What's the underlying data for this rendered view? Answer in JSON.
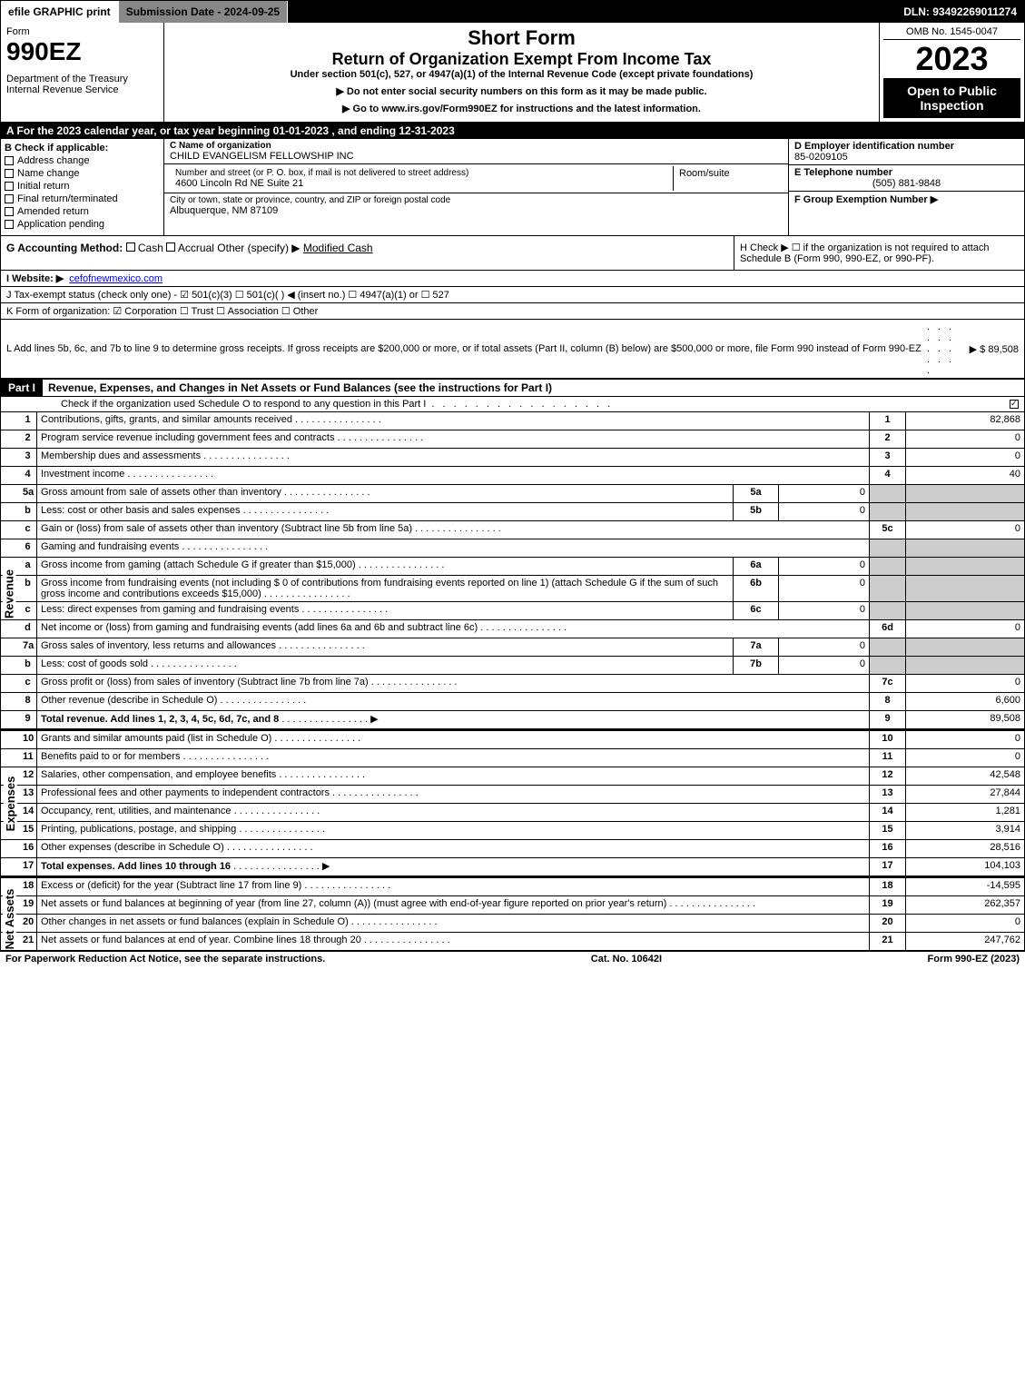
{
  "topbar": {
    "efile": "efile GRAPHIC print",
    "submission": "Submission Date - 2024-09-25",
    "dln": "DLN: 93492269011274"
  },
  "header": {
    "form_label": "Form",
    "form_number": "990EZ",
    "dept1": "Department of the Treasury",
    "dept2": "Internal Revenue Service",
    "short_form": "Short Form",
    "title": "Return of Organization Exempt From Income Tax",
    "under": "Under section 501(c), 527, or 4947(a)(1) of the Internal Revenue Code (except private foundations)",
    "warn": "▶ Do not enter social security numbers on this form as it may be made public.",
    "goto": "▶ Go to www.irs.gov/Form990EZ for instructions and the latest information.",
    "omb": "OMB No. 1545-0047",
    "year": "2023",
    "open": "Open to Public Inspection"
  },
  "rowA": "A  For the 2023 calendar year, or tax year beginning 01-01-2023 , and ending 12-31-2023",
  "sectionB": {
    "label": "B  Check if applicable:",
    "items": [
      "Address change",
      "Name change",
      "Initial return",
      "Final return/terminated",
      "Amended return",
      "Application pending"
    ]
  },
  "sectionC": {
    "name_label": "C Name of organization",
    "name": "CHILD EVANGELISM FELLOWSHIP INC",
    "street_label": "Number and street (or P. O. box, if mail is not delivered to street address)",
    "street": "4600 Lincoln Rd NE Suite 21",
    "room_label": "Room/suite",
    "city_label": "City or town, state or province, country, and ZIP or foreign postal code",
    "city": "Albuquerque, NM  87109"
  },
  "sectionD": {
    "ein_label": "D Employer identification number",
    "ein": "85-0209105",
    "phone_label": "E Telephone number",
    "phone": "(505) 881-9848",
    "group_label": "F Group Exemption Number  ▶"
  },
  "rowG": {
    "label": "G Accounting Method:",
    "cash": "Cash",
    "accrual": "Accrual",
    "other": "Other (specify) ▶",
    "method": "Modified Cash"
  },
  "rowH": {
    "text": "H  Check ▶ ☐ if the organization is not required to attach Schedule B (Form 990, 990-EZ, or 990-PF)."
  },
  "rowI": {
    "label": "I Website: ▶",
    "site": "cefofnewmexico.com"
  },
  "rowJ": "J Tax-exempt status (check only one) - ☑ 501(c)(3) ☐ 501(c)(  ) ◀ (insert no.) ☐ 4947(a)(1) or ☐ 527",
  "rowK": "K Form of organization:  ☑ Corporation  ☐ Trust  ☐ Association  ☐ Other",
  "rowL": {
    "text": "L Add lines 5b, 6c, and 7b to line 9 to determine gross receipts. If gross receipts are $200,000 or more, or if total assets (Part II, column (B) below) are $500,000 or more, file Form 990 instead of Form 990-EZ",
    "amount": "▶ $ 89,508"
  },
  "part1": {
    "label": "Part I",
    "title": "Revenue, Expenses, and Changes in Net Assets or Fund Balances (see the instructions for Part I)",
    "check": "Check if the organization used Schedule O to respond to any question in this Part I"
  },
  "sections": {
    "revenue": "Revenue",
    "expenses": "Expenses",
    "netassets": "Net Assets"
  },
  "lines": [
    {
      "n": "1",
      "desc": "Contributions, gifts, grants, and similar amounts received",
      "rn": "1",
      "rv": "82,868"
    },
    {
      "n": "2",
      "desc": "Program service revenue including government fees and contracts",
      "rn": "2",
      "rv": "0"
    },
    {
      "n": "3",
      "desc": "Membership dues and assessments",
      "rn": "3",
      "rv": "0"
    },
    {
      "n": "4",
      "desc": "Investment income",
      "rn": "4",
      "rv": "40"
    },
    {
      "n": "5a",
      "desc": "Gross amount from sale of assets other than inventory",
      "box": "5a",
      "bv": "0",
      "shaded": true
    },
    {
      "n": "b",
      "desc": "Less: cost or other basis and sales expenses",
      "box": "5b",
      "bv": "0",
      "shaded": true
    },
    {
      "n": "c",
      "desc": "Gain or (loss) from sale of assets other than inventory (Subtract line 5b from line 5a)",
      "rn": "5c",
      "rv": "0"
    },
    {
      "n": "6",
      "desc": "Gaming and fundraising events",
      "shaded": true,
      "noborder": true
    },
    {
      "n": "a",
      "desc": "Gross income from gaming (attach Schedule G if greater than $15,000)",
      "box": "6a",
      "bv": "0",
      "shaded": true
    },
    {
      "n": "b",
      "desc": "Gross income from fundraising events (not including $ 0         of contributions from fundraising events reported on line 1) (attach Schedule G if the sum of such gross income and contributions exceeds $15,000)",
      "box": "6b",
      "bv": "0",
      "shaded": true
    },
    {
      "n": "c",
      "desc": "Less: direct expenses from gaming and fundraising events",
      "box": "6c",
      "bv": "0",
      "shaded": true
    },
    {
      "n": "d",
      "desc": "Net income or (loss) from gaming and fundraising events (add lines 6a and 6b and subtract line 6c)",
      "rn": "6d",
      "rv": "0"
    },
    {
      "n": "7a",
      "desc": "Gross sales of inventory, less returns and allowances",
      "box": "7a",
      "bv": "0",
      "shaded": true
    },
    {
      "n": "b",
      "desc": "Less: cost of goods sold",
      "box": "7b",
      "bv": "0",
      "shaded": true
    },
    {
      "n": "c",
      "desc": "Gross profit or (loss) from sales of inventory (Subtract line 7b from line 7a)",
      "rn": "7c",
      "rv": "0"
    },
    {
      "n": "8",
      "desc": "Other revenue (describe in Schedule O)",
      "rn": "8",
      "rv": "6,600"
    },
    {
      "n": "9",
      "desc": "Total revenue. Add lines 1, 2, 3, 4, 5c, 6d, 7c, and 8",
      "rn": "9",
      "rv": "89,508",
      "bold": true,
      "arrow": true
    }
  ],
  "expense_lines": [
    {
      "n": "10",
      "desc": "Grants and similar amounts paid (list in Schedule O)",
      "rn": "10",
      "rv": "0"
    },
    {
      "n": "11",
      "desc": "Benefits paid to or for members",
      "rn": "11",
      "rv": "0"
    },
    {
      "n": "12",
      "desc": "Salaries, other compensation, and employee benefits",
      "rn": "12",
      "rv": "42,548"
    },
    {
      "n": "13",
      "desc": "Professional fees and other payments to independent contractors",
      "rn": "13",
      "rv": "27,844"
    },
    {
      "n": "14",
      "desc": "Occupancy, rent, utilities, and maintenance",
      "rn": "14",
      "rv": "1,281"
    },
    {
      "n": "15",
      "desc": "Printing, publications, postage, and shipping",
      "rn": "15",
      "rv": "3,914"
    },
    {
      "n": "16",
      "desc": "Other expenses (describe in Schedule O)",
      "rn": "16",
      "rv": "28,516"
    },
    {
      "n": "17",
      "desc": "Total expenses. Add lines 10 through 16",
      "rn": "17",
      "rv": "104,103",
      "bold": true,
      "arrow": true
    }
  ],
  "net_lines": [
    {
      "n": "18",
      "desc": "Excess or (deficit) for the year (Subtract line 17 from line 9)",
      "rn": "18",
      "rv": "-14,595"
    },
    {
      "n": "19",
      "desc": "Net assets or fund balances at beginning of year (from line 27, column (A)) (must agree with end-of-year figure reported on prior year's return)",
      "rn": "19",
      "rv": "262,357"
    },
    {
      "n": "20",
      "desc": "Other changes in net assets or fund balances (explain in Schedule O)",
      "rn": "20",
      "rv": "0"
    },
    {
      "n": "21",
      "desc": "Net assets or fund balances at end of year. Combine lines 18 through 20",
      "rn": "21",
      "rv": "247,762"
    }
  ],
  "footer": {
    "left": "For Paperwork Reduction Act Notice, see the separate instructions.",
    "center": "Cat. No. 10642I",
    "right": "Form 990-EZ (2023)"
  }
}
